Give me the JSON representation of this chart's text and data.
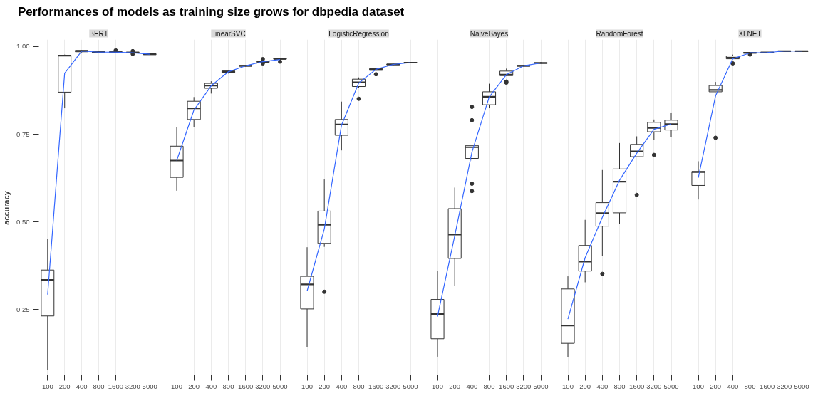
{
  "chart_data": [
    {
      "type": "box",
      "title": "Performances of models as training size grows for dbpedia dataset",
      "subtitle": "BERT",
      "ylabel": "accuracy",
      "categories": [
        "100",
        "200",
        "400",
        "800",
        "1600",
        "3200",
        "5000"
      ],
      "ylim": [
        0.06,
        1.02
      ],
      "yticks": [
        {
          "value": 0.25,
          "label": "0.25"
        },
        {
          "value": 0.5,
          "label": "0.50"
        },
        {
          "value": 0.75,
          "label": "0.75"
        },
        {
          "value": 1.0,
          "label": "1.00"
        }
      ],
      "grid": "x",
      "series": [
        {
          "color": "#333333",
          "boxes": [
            {
              "low": 0.079,
              "q1": 0.232,
              "median": 0.335,
              "q3": 0.363,
              "high": 0.452
            },
            {
              "low": 0.824,
              "q1": 0.87,
              "median": 0.974,
              "q3": 0.975,
              "high": 0.977
            },
            {
              "low": 0.983,
              "q1": 0.985,
              "median": 0.987,
              "q3": 0.989,
              "high": 0.99
            },
            {
              "low": 0.981,
              "q1": 0.982,
              "median": 0.984,
              "q3": 0.985,
              "high": 0.986
            },
            {
              "low": 0.982,
              "q1": 0.983,
              "median": 0.984,
              "q3": 0.985,
              "high": 0.986,
              "outliers": [
                0.989
              ]
            },
            {
              "low": 0.981,
              "q1": 0.982,
              "median": 0.983,
              "q3": 0.984,
              "high": 0.985,
              "outliers": [
                0.987,
                0.979
              ]
            },
            {
              "low": 0.977,
              "q1": 0.977,
              "median": 0.978,
              "q3": 0.979,
              "high": 0.979
            }
          ]
        },
        {
          "type": "line",
          "color": "#3366ff",
          "values": [
            0.293,
            0.924,
            0.987,
            0.984,
            0.984,
            0.982,
            0.978
          ]
        }
      ]
    },
    {
      "type": "box",
      "subtitle": "LinearSVC",
      "categories": [
        "100",
        "200",
        "400",
        "800",
        "1600",
        "3200",
        "5000"
      ],
      "ylim": [
        0.06,
        1.02
      ],
      "grid": "x",
      "tick_labels": "x",
      "series": [
        {
          "color": "#333333",
          "boxes": [
            {
              "low": 0.589,
              "q1": 0.627,
              "median": 0.675,
              "q3": 0.716,
              "high": 0.771
            },
            {
              "low": 0.77,
              "q1": 0.792,
              "median": 0.824,
              "q3": 0.844,
              "high": 0.856
            },
            {
              "low": 0.866,
              "q1": 0.881,
              "median": 0.889,
              "q3": 0.895,
              "high": 0.901
            },
            {
              "low": 0.923,
              "q1": 0.925,
              "median": 0.928,
              "q3": 0.931,
              "high": 0.933
            },
            {
              "low": 0.943,
              "q1": 0.944,
              "median": 0.945,
              "q3": 0.946,
              "high": 0.947
            },
            {
              "low": 0.954,
              "q1": 0.955,
              "median": 0.957,
              "q3": 0.959,
              "high": 0.961,
              "outliers": [
                0.964,
                0.952
              ]
            },
            {
              "low": 0.963,
              "q1": 0.964,
              "median": 0.965,
              "q3": 0.966,
              "high": 0.967,
              "outliers": [
                0.957
              ]
            }
          ]
        },
        {
          "type": "line",
          "color": "#3366ff",
          "values": [
            0.675,
            0.819,
            0.888,
            0.928,
            0.945,
            0.957,
            0.963
          ]
        }
      ]
    },
    {
      "type": "box",
      "subtitle": "LogisticRegression",
      "categories": [
        "100",
        "200",
        "400",
        "800",
        "1600",
        "3200",
        "5000"
      ],
      "ylim": [
        0.06,
        1.02
      ],
      "grid": "x",
      "tick_labels": "x",
      "series": [
        {
          "color": "#333333",
          "boxes": [
            {
              "low": 0.144,
              "q1": 0.252,
              "median": 0.322,
              "q3": 0.345,
              "high": 0.428
            },
            {
              "low": 0.429,
              "q1": 0.439,
              "median": 0.492,
              "q3": 0.531,
              "high": 0.621,
              "outliers": [
                0.301
              ]
            },
            {
              "low": 0.704,
              "q1": 0.747,
              "median": 0.778,
              "q3": 0.792,
              "high": 0.843
            },
            {
              "low": 0.881,
              "q1": 0.886,
              "median": 0.898,
              "q3": 0.907,
              "high": 0.912,
              "outliers": [
                0.851
              ]
            },
            {
              "low": 0.931,
              "q1": 0.932,
              "median": 0.935,
              "q3": 0.937,
              "high": 0.938,
              "outliers": [
                0.921
              ]
            },
            {
              "low": 0.947,
              "q1": 0.948,
              "median": 0.949,
              "q3": 0.95,
              "high": 0.951
            },
            {
              "low": 0.953,
              "q1": 0.953,
              "median": 0.954,
              "q3": 0.955,
              "high": 0.955
            }
          ]
        },
        {
          "type": "line",
          "color": "#3366ff",
          "values": [
            0.303,
            0.48,
            0.776,
            0.896,
            0.935,
            0.949,
            0.954
          ]
        }
      ]
    },
    {
      "type": "box",
      "subtitle": "NaiveBayes",
      "categories": [
        "100",
        "200",
        "400",
        "800",
        "1600",
        "3200",
        "5000"
      ],
      "ylim": [
        0.06,
        1.02
      ],
      "grid": "x",
      "tick_labels": "x",
      "series": [
        {
          "color": "#333333",
          "boxes": [
            {
              "low": 0.116,
              "q1": 0.167,
              "median": 0.238,
              "q3": 0.279,
              "high": 0.361
            },
            {
              "low": 0.317,
              "q1": 0.396,
              "median": 0.464,
              "q3": 0.538,
              "high": 0.598
            },
            {
              "low": 0.675,
              "q1": 0.681,
              "median": 0.713,
              "q3": 0.718,
              "high": 0.718,
              "outliers": [
                0.828,
                0.79,
                0.609,
                0.588
              ]
            },
            {
              "low": 0.824,
              "q1": 0.834,
              "median": 0.857,
              "q3": 0.871,
              "high": 0.894
            },
            {
              "low": 0.916,
              "q1": 0.917,
              "median": 0.92,
              "q3": 0.93,
              "high": 0.937,
              "outliers": [
                0.9,
                0.897
              ]
            },
            {
              "low": 0.943,
              "q1": 0.944,
              "median": 0.945,
              "q3": 0.946,
              "high": 0.947
            },
            {
              "low": 0.951,
              "q1": 0.952,
              "median": 0.953,
              "q3": 0.954,
              "high": 0.956
            }
          ]
        },
        {
          "type": "line",
          "color": "#3366ff",
          "values": [
            0.23,
            0.46,
            0.699,
            0.856,
            0.92,
            0.945,
            0.953
          ]
        }
      ]
    },
    {
      "type": "box",
      "subtitle": "RandomForest",
      "categories": [
        "100",
        "200",
        "400",
        "800",
        "1600",
        "3200",
        "5000"
      ],
      "ylim": [
        0.06,
        1.02
      ],
      "grid": "x",
      "tick_labels": "x",
      "series": [
        {
          "color": "#333333",
          "boxes": [
            {
              "low": 0.115,
              "q1": 0.154,
              "median": 0.205,
              "q3": 0.309,
              "high": 0.345
            },
            {
              "low": 0.328,
              "q1": 0.36,
              "median": 0.387,
              "q3": 0.433,
              "high": 0.506
            },
            {
              "low": 0.403,
              "q1": 0.488,
              "median": 0.525,
              "q3": 0.555,
              "high": 0.648,
              "outliers": [
                0.352
              ]
            },
            {
              "low": 0.494,
              "q1": 0.526,
              "median": 0.615,
              "q3": 0.651,
              "high": 0.725
            },
            {
              "low": 0.686,
              "q1": 0.686,
              "median": 0.701,
              "q3": 0.721,
              "high": 0.744,
              "outliers": [
                0.577
              ]
            },
            {
              "low": 0.734,
              "q1": 0.757,
              "median": 0.768,
              "q3": 0.784,
              "high": 0.792,
              "outliers": [
                0.691
              ]
            },
            {
              "low": 0.742,
              "q1": 0.762,
              "median": 0.779,
              "q3": 0.79,
              "high": 0.812
            }
          ]
        },
        {
          "type": "line",
          "color": "#3366ff",
          "values": [
            0.223,
            0.398,
            0.513,
            0.619,
            0.696,
            0.764,
            0.779
          ]
        }
      ]
    },
    {
      "type": "box",
      "subtitle": "XLNET",
      "categories": [
        "100",
        "200",
        "400",
        "800",
        "1600",
        "3200",
        "5000"
      ],
      "ylim": [
        0.06,
        1.02
      ],
      "grid": "x",
      "tick_labels": "x",
      "series": [
        {
          "color": "#333333",
          "boxes": [
            {
              "low": 0.564,
              "q1": 0.604,
              "median": 0.642,
              "q3": 0.644,
              "high": 0.673
            },
            {
              "low": 0.871,
              "q1": 0.871,
              "median": 0.876,
              "q3": 0.889,
              "high": 0.899,
              "outliers": [
                0.74
              ]
            },
            {
              "low": 0.965,
              "q1": 0.965,
              "median": 0.968,
              "q3": 0.973,
              "high": 0.977,
              "outliers": [
                0.952
              ]
            },
            {
              "low": 0.98,
              "q1": 0.981,
              "median": 0.982,
              "q3": 0.983,
              "high": 0.984,
              "outliers": [
                0.977
              ]
            },
            {
              "low": 0.982,
              "q1": 0.982,
              "median": 0.983,
              "q3": 0.984,
              "high": 0.984
            },
            {
              "low": 0.986,
              "q1": 0.986,
              "median": 0.987,
              "q3": 0.987,
              "high": 0.988
            },
            {
              "low": 0.986,
              "q1": 0.986,
              "median": 0.987,
              "q3": 0.987,
              "high": 0.988
            }
          ]
        },
        {
          "type": "line",
          "color": "#3366ff",
          "values": [
            0.626,
            0.859,
            0.965,
            0.982,
            0.983,
            0.987,
            0.987
          ]
        }
      ]
    }
  ]
}
